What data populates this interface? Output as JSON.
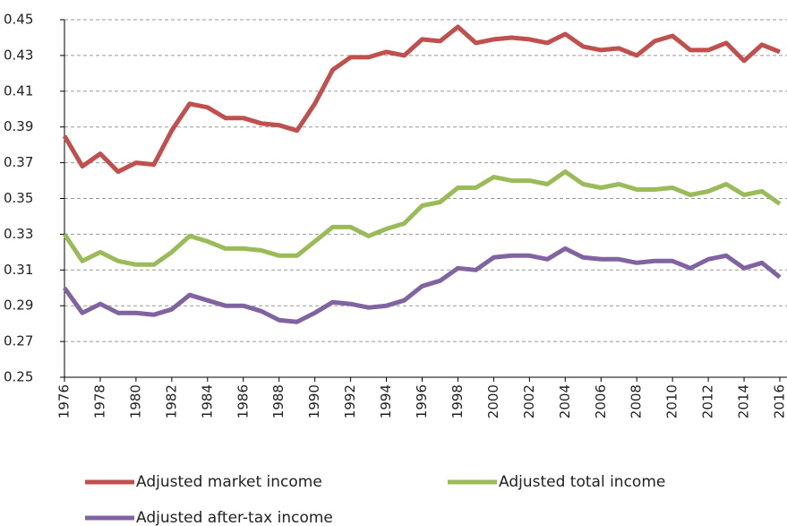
{
  "chart_data": {
    "type": "line",
    "x": [
      1976,
      1977,
      1978,
      1979,
      1980,
      1981,
      1982,
      1983,
      1984,
      1985,
      1986,
      1987,
      1988,
      1989,
      1990,
      1991,
      1992,
      1993,
      1994,
      1995,
      1996,
      1997,
      1998,
      1999,
      2000,
      2001,
      2002,
      2003,
      2004,
      2005,
      2006,
      2007,
      2008,
      2009,
      2010,
      2011,
      2012,
      2013,
      2014,
      2015,
      2016
    ],
    "series": [
      {
        "name": "Adjusted market income",
        "color": "#c0504d",
        "values": [
          0.385,
          0.368,
          0.375,
          0.365,
          0.37,
          0.369,
          0.388,
          0.403,
          0.401,
          0.395,
          0.395,
          0.392,
          0.391,
          0.388,
          0.403,
          0.422,
          0.429,
          0.429,
          0.432,
          0.43,
          0.439,
          0.438,
          0.446,
          0.437,
          0.439,
          0.44,
          0.439,
          0.437,
          0.442,
          0.435,
          0.433,
          0.434,
          0.43,
          0.438,
          0.441,
          0.433,
          0.433,
          0.437,
          0.427,
          0.436,
          0.432
        ]
      },
      {
        "name": "Adjusted total income",
        "color": "#9bbb59",
        "values": [
          0.33,
          0.315,
          0.32,
          0.315,
          0.313,
          0.313,
          0.32,
          0.329,
          0.326,
          0.322,
          0.322,
          0.321,
          0.318,
          0.318,
          0.326,
          0.334,
          0.334,
          0.329,
          0.333,
          0.336,
          0.346,
          0.348,
          0.356,
          0.356,
          0.362,
          0.36,
          0.36,
          0.358,
          0.365,
          0.358,
          0.356,
          0.358,
          0.355,
          0.355,
          0.356,
          0.352,
          0.354,
          0.358,
          0.352,
          0.354,
          0.347
        ]
      },
      {
        "name": "Adjusted after-tax income",
        "color": "#8064a2",
        "values": [
          0.3,
          0.286,
          0.291,
          0.286,
          0.286,
          0.285,
          0.288,
          0.296,
          0.293,
          0.29,
          0.29,
          0.287,
          0.282,
          0.281,
          0.286,
          0.292,
          0.291,
          0.289,
          0.29,
          0.293,
          0.301,
          0.304,
          0.311,
          0.31,
          0.317,
          0.318,
          0.318,
          0.316,
          0.322,
          0.317,
          0.316,
          0.316,
          0.314,
          0.315,
          0.315,
          0.311,
          0.316,
          0.318,
          0.311,
          0.314,
          0.306
        ]
      }
    ],
    "xlim": [
      1976,
      2016
    ],
    "xticks": [
      1976,
      1978,
      1980,
      1982,
      1984,
      1986,
      1988,
      1990,
      1992,
      1994,
      1996,
      1998,
      2000,
      2002,
      2004,
      2006,
      2008,
      2010,
      2012,
      2014,
      2016
    ],
    "ylim": [
      0.25,
      0.45
    ],
    "yticks": [
      0.25,
      0.27,
      0.29,
      0.31,
      0.33,
      0.35,
      0.37,
      0.39,
      0.41,
      0.43,
      0.45
    ],
    "grid": true
  }
}
